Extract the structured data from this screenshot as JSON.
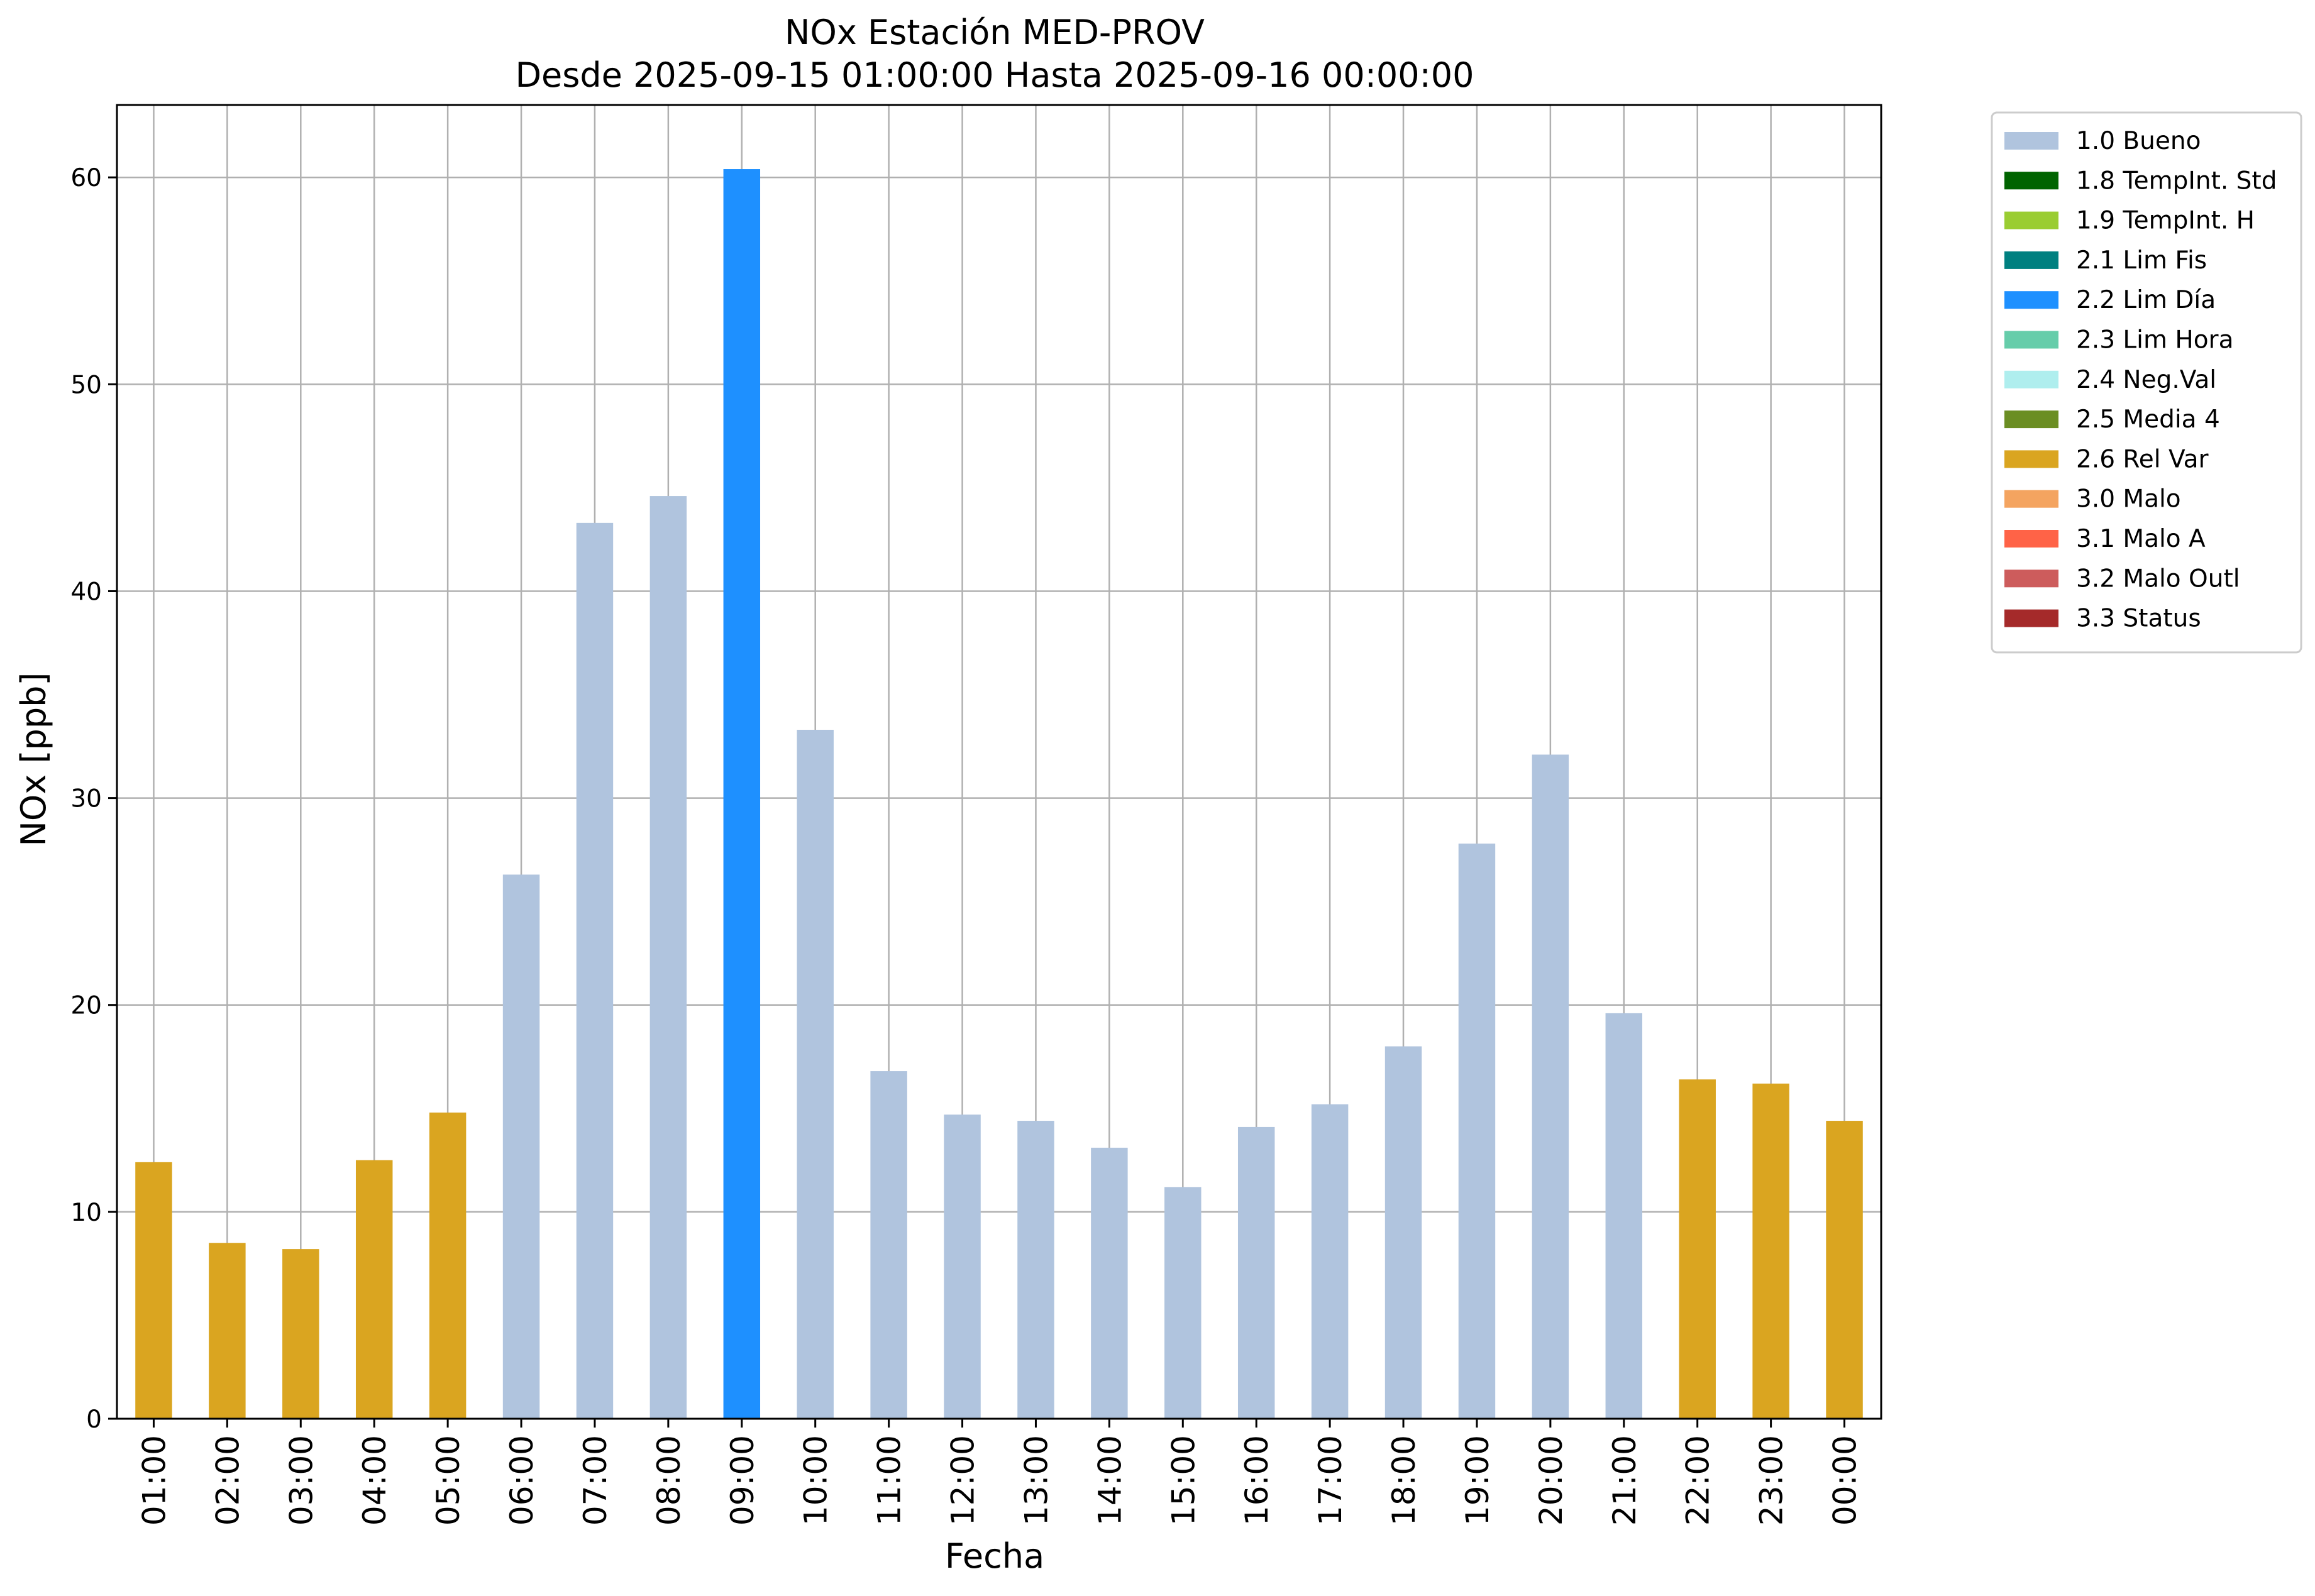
{
  "chart_data": {
    "type": "bar",
    "title": "NOx Estación MED-PROV",
    "subtitle": "Desde 2025-09-15 01:00:00 Hasta 2025-09-16 00:00:00",
    "xlabel": "Fecha",
    "ylabel": "NOx [ppb]",
    "ylim": [
      0,
      63.5
    ],
    "yticks": [
      0,
      10,
      20,
      30,
      40,
      50,
      60
    ],
    "grid": true,
    "legend_position": "outside-top-right",
    "categories": [
      "01:00",
      "02:00",
      "03:00",
      "04:00",
      "05:00",
      "06:00",
      "07:00",
      "08:00",
      "09:00",
      "10:00",
      "11:00",
      "12:00",
      "13:00",
      "14:00",
      "15:00",
      "16:00",
      "17:00",
      "18:00",
      "19:00",
      "20:00",
      "21:00",
      "22:00",
      "23:00",
      "00:00"
    ],
    "values": [
      12.4,
      8.5,
      8.2,
      12.5,
      14.8,
      26.3,
      43.3,
      44.6,
      60.4,
      33.3,
      16.8,
      14.7,
      14.4,
      13.1,
      11.2,
      14.1,
      15.2,
      18.0,
      27.8,
      32.1,
      19.6,
      16.4,
      16.2,
      14.4
    ],
    "flags": [
      "2.6 Rel Var",
      "2.6 Rel Var",
      "2.6 Rel Var",
      "2.6 Rel Var",
      "2.6 Rel Var",
      "1.0 Bueno",
      "1.0 Bueno",
      "1.0 Bueno",
      "2.2 Lim Día",
      "1.0 Bueno",
      "1.0 Bueno",
      "1.0 Bueno",
      "1.0 Bueno",
      "1.0 Bueno",
      "1.0 Bueno",
      "1.0 Bueno",
      "1.0 Bueno",
      "1.0 Bueno",
      "1.0 Bueno",
      "1.0 Bueno",
      "1.0 Bueno",
      "2.6 Rel Var",
      "2.6 Rel Var",
      "2.6 Rel Var"
    ],
    "legend": [
      {
        "label": "1.0 Bueno",
        "color": "#b0c4de"
      },
      {
        "label": "1.8 TempInt. Std",
        "color": "#006400"
      },
      {
        "label": "1.9 TempInt. H",
        "color": "#9acd32"
      },
      {
        "label": "2.1 Lim Fis",
        "color": "#008080"
      },
      {
        "label": "2.2 Lim Día",
        "color": "#1e90ff"
      },
      {
        "label": "2.3 Lim Hora",
        "color": "#66cdaa"
      },
      {
        "label": "2.4 Neg.Val",
        "color": "#afeeee"
      },
      {
        "label": "2.5 Media 4",
        "color": "#6b8e23"
      },
      {
        "label": "2.6 Rel Var",
        "color": "#daa520"
      },
      {
        "label": "3.0 Malo",
        "color": "#f4a460"
      },
      {
        "label": "3.1 Malo A",
        "color": "#ff6347"
      },
      {
        "label": "3.2 Malo Outl",
        "color": "#cd5c5c"
      },
      {
        "label": "3.3 Status",
        "color": "#a52a2a"
      }
    ]
  }
}
